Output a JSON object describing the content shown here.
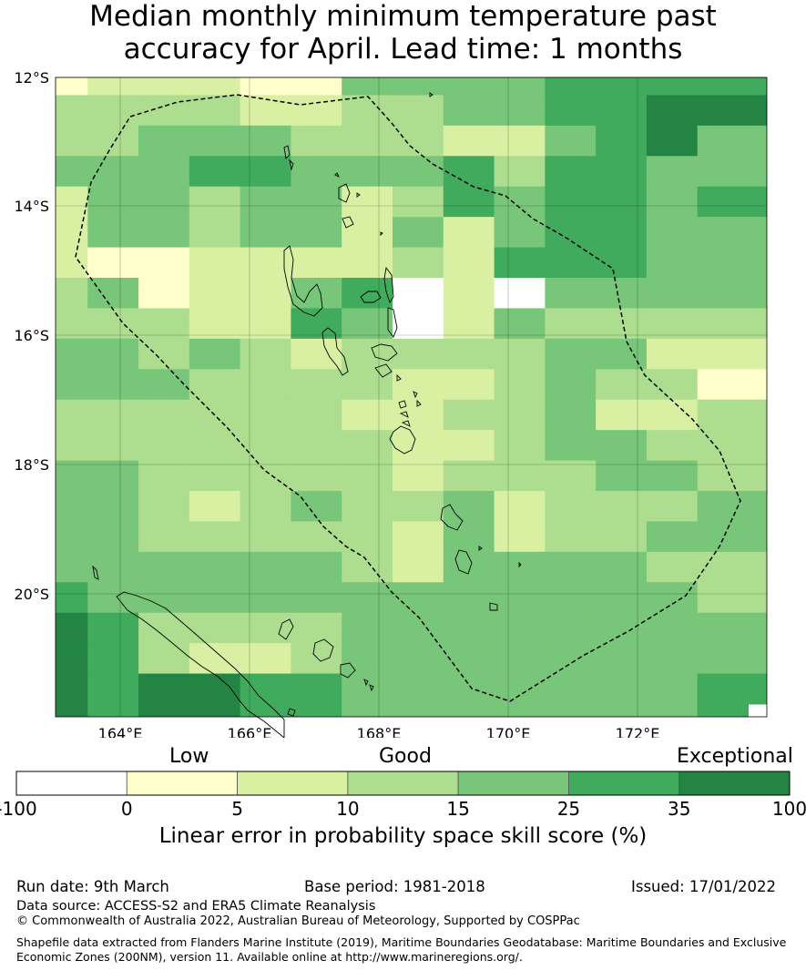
{
  "title": {
    "line1": "Median monthly minimum temperature past",
    "line2": "accuracy for April. Lead time: 1 months"
  },
  "map": {
    "lat_labels": [
      "12°S",
      "14°S",
      "16°S",
      "18°S",
      "20°S"
    ],
    "lon_labels": [
      "164°E",
      "166°E",
      "168°E",
      "170°E",
      "172°E"
    ],
    "lon_range": [
      163.0,
      174.0
    ],
    "lat_range": [
      -21.9,
      -12.0
    ],
    "colors": [
      "#ffffff",
      "#ffffcc",
      "#d9f0a3",
      "#addd8e",
      "#78c679",
      "#41ab5d",
      "#238443"
    ],
    "grid_rows": [
      "12221144445555",
      "33332233445566",
      "33444333224564",
      "44455444535544",
      "24434423545545",
      "24434424245544",
      "21122223255544",
      "34122450204444",
      "33322540243333",
      "44343233334422",
      "44433332234331",
      "33333322334223",
      "33333332234433",
      "44333332333443",
      "44323433423334",
      "44333332423344",
      "44444432444433",
      "54444444444443",
      "65333344444444",
      "65322344444444",
      "65665544444445"
    ]
  },
  "legend": {
    "categories": [
      "Low",
      "Good",
      "Exceptional"
    ],
    "ticks": [
      "-100",
      "0",
      "5",
      "10",
      "15",
      "25",
      "35",
      "100"
    ],
    "colors": [
      "#ffffff",
      "#ffffcc",
      "#d9f0a3",
      "#addd8e",
      "#78c679",
      "#41ab5d",
      "#238443"
    ],
    "title": "Linear error in probability space skill score (%)"
  },
  "footer": {
    "run_date": "Run date: 9th March",
    "base_period": "Base period: 1981-2018",
    "issued": "Issued: 17/01/2022",
    "data_source": "Data source: ACCESS-S2 and ERA5 Climate Reanalysis",
    "copyright": "© Commonwealth of Australia 2022, Australian Bureau of Meteorology, Supported by COSPPac",
    "shapefile_line1": "Shapefile data extracted from Flanders Marine Institute (2019), Maritime Boundaries Geodatabase: Maritime Boundaries and Exclusive",
    "shapefile_line2": "Economic Zones (200NM), version 11. Available online at http://www.marineregions.org/."
  }
}
